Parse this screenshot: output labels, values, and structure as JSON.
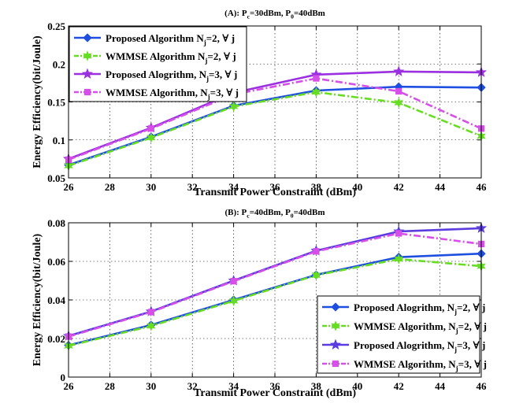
{
  "chart_data": [
    {
      "type": "line",
      "title_parts": [
        "(A): P",
        "c",
        "=30dBm, P",
        "0",
        "=40dBm"
      ],
      "xlabel": "Transmit Power Constraint (dBm)",
      "ylabel": "Energy Efficiency(bit/Joule)",
      "x": [
        26,
        30,
        34,
        38,
        42,
        46
      ],
      "xlim": [
        26,
        46
      ],
      "xticks": [
        26,
        28,
        30,
        32,
        34,
        36,
        38,
        40,
        42,
        44,
        46
      ],
      "ylim": [
        0.05,
        0.25
      ],
      "yticks": [
        0.05,
        0.1,
        0.15,
        0.2,
        0.25
      ],
      "ytick_labels": [
        "0.05",
        "0.1",
        "0.15",
        "0.2",
        "0.25"
      ],
      "grid": true,
      "legend_position": "top-left",
      "series": [
        {
          "label_parts": [
            "Proposed Algorithm N",
            "j",
            "=2, ∀ j"
          ],
          "values": [
            0.067,
            0.104,
            0.145,
            0.165,
            0.17,
            0.169
          ],
          "color": "#1f4fe0",
          "dash": "solid",
          "marker": "diamond"
        },
        {
          "label_parts": [
            "WMMSE Algorithm N",
            "j",
            "=2, ∀ j"
          ],
          "values": [
            0.066,
            0.103,
            0.144,
            0.163,
            0.149,
            0.105
          ],
          "color": "#66dd22",
          "dash": "dashdot",
          "marker": "star6"
        },
        {
          "label_parts": [
            "Proposed Alogrithm, N",
            "j",
            "=3, ∀ j"
          ],
          "values": [
            0.075,
            0.116,
            0.162,
            0.186,
            0.19,
            0.189
          ],
          "color": "#9b30e0",
          "dash": "solid",
          "marker": "star5"
        },
        {
          "label_parts": [
            "WMMSE Algorithm, N",
            "j",
            "=3, ∀ j"
          ],
          "values": [
            0.074,
            0.115,
            0.16,
            0.181,
            0.164,
            0.115
          ],
          "color": "#d64fe8",
          "dash": "dashdot",
          "marker": "square"
        }
      ]
    },
    {
      "type": "line",
      "title_parts": [
        "(B): P",
        "c",
        "=40dBm, P",
        "0",
        "=40dBm"
      ],
      "xlabel": "Transmit Power Constraint (dBm)",
      "ylabel": "Energy Efficiency(bit/Joule)",
      "x": [
        26,
        30,
        34,
        38,
        42,
        46
      ],
      "xlim": [
        26,
        46
      ],
      "xticks": [
        26,
        28,
        30,
        32,
        34,
        36,
        38,
        40,
        42,
        44,
        46
      ],
      "ylim": [
        0,
        0.08
      ],
      "yticks": [
        0,
        0.02,
        0.04,
        0.06,
        0.08
      ],
      "ytick_labels": [
        "0",
        "0.02",
        "0.04",
        "0.06",
        "0.08"
      ],
      "grid": true,
      "legend_position": "bottom-right",
      "series": [
        {
          "label_parts": [
            "Proposed Alogrithm, N",
            "j",
            "=2, ∀ j"
          ],
          "values": [
            0.0165,
            0.027,
            0.04,
            0.053,
            0.0622,
            0.064
          ],
          "color": "#1f4fe0",
          "dash": "solid",
          "marker": "diamond"
        },
        {
          "label_parts": [
            "WMMSE Algorithm, N",
            "j",
            "=2, ∀ j"
          ],
          "values": [
            0.0162,
            0.0265,
            0.0395,
            0.0528,
            0.0612,
            0.0575
          ],
          "color": "#66dd22",
          "dash": "dashdot",
          "marker": "star6"
        },
        {
          "label_parts": [
            "Proposed Alogrithm, N",
            "j",
            "=3, ∀ j"
          ],
          "values": [
            0.0213,
            0.034,
            0.05,
            0.0655,
            0.0755,
            0.0772
          ],
          "color": "#5b3ce0",
          "dash": "solid",
          "marker": "star5"
        },
        {
          "label_parts": [
            "WMMSE Algorithm, N",
            "j",
            "=3, ∀ j"
          ],
          "values": [
            0.021,
            0.0337,
            0.0497,
            0.0652,
            0.0745,
            0.069
          ],
          "color": "#d64fe8",
          "dash": "dashdot",
          "marker": "square"
        }
      ]
    }
  ]
}
